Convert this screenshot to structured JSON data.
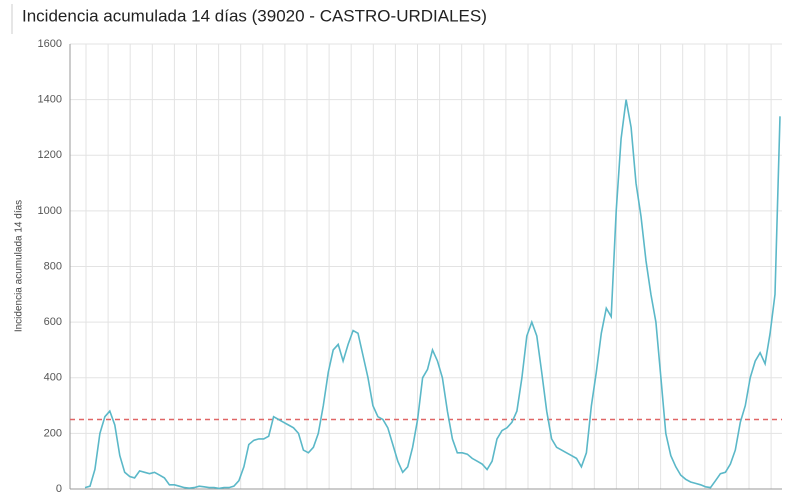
{
  "chart_data": {
    "type": "line",
    "title": "Incidencia acumulada 14 días (39020 - CASTRO-URDIALES)",
    "y_label": "Incidencia acumulada 14 días",
    "ylim": [
      0,
      1600
    ],
    "yticks": [
      0,
      200,
      400,
      600,
      800,
      1000,
      1200,
      1400,
      1600
    ],
    "grid": true,
    "reference_line": {
      "value": 250,
      "color": "#e06666"
    },
    "series": [
      {
        "color": "#5bb8c8",
        "values": [
          5,
          10,
          70,
          200,
          260,
          280,
          230,
          120,
          60,
          45,
          40,
          65,
          60,
          55,
          60,
          50,
          40,
          15,
          15,
          10,
          5,
          3,
          5,
          10,
          8,
          5,
          5,
          2,
          5,
          5,
          10,
          30,
          80,
          160,
          175,
          180,
          180,
          190,
          260,
          250,
          240,
          230,
          220,
          200,
          140,
          130,
          150,
          200,
          300,
          420,
          500,
          520,
          460,
          520,
          570,
          560,
          480,
          400,
          300,
          260,
          250,
          220,
          160,
          100,
          60,
          80,
          150,
          250,
          400,
          430,
          500,
          460,
          400,
          280,
          180,
          130,
          130,
          125,
          110,
          100,
          90,
          70,
          100,
          180,
          210,
          220,
          240,
          280,
          400,
          550,
          600,
          550,
          420,
          280,
          180,
          150,
          140,
          130,
          120,
          110,
          80,
          130,
          300,
          420,
          560,
          650,
          620,
          1000,
          1260,
          1400,
          1300,
          1100,
          980,
          820,
          700,
          600,
          400,
          200,
          120,
          80,
          50,
          35,
          25,
          20,
          15,
          8,
          5,
          30,
          55,
          60,
          90,
          140,
          240,
          300,
          400,
          460,
          490,
          450,
          560,
          700,
          1340
        ]
      }
    ]
  }
}
